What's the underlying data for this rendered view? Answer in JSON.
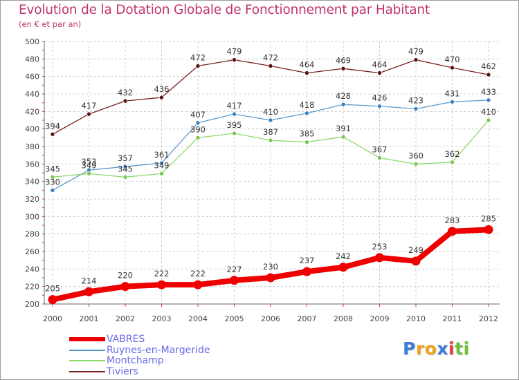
{
  "title": "Evolution de la Dotation Globale de Fonctionnement par Habitant",
  "subtitle": "(en € et par an)",
  "logo": {
    "text": "Proxiti",
    "letters": [
      "P",
      "r",
      "o",
      "x",
      "i",
      "t",
      "i"
    ],
    "colors": [
      "#3b7dd8",
      "#f0a21a",
      "#f0a21a",
      "#3b7dd8",
      "#e03c3c",
      "#6fbf3a",
      "#6fbf3a"
    ]
  },
  "colors": {
    "title": "#c0346e",
    "axis": "#444444",
    "grid": "#cccccc",
    "ticks_red": "#e0324a",
    "legend_text": "#6a6ae8"
  },
  "chart_data": {
    "type": "line",
    "title": "Evolution de la Dotation Globale de Fonctionnement par Habitant",
    "subtitle": "(en € et par an)",
    "xlabel": "",
    "ylabel": "",
    "x": [
      "2000",
      "2001",
      "2002",
      "2003",
      "2004",
      "2005",
      "2006",
      "2007",
      "2008",
      "2009",
      "2010",
      "2011",
      "2012"
    ],
    "ylim": [
      200,
      500
    ],
    "yticks": [
      200,
      220,
      240,
      260,
      280,
      300,
      320,
      340,
      360,
      380,
      400,
      420,
      440,
      460,
      480,
      500
    ],
    "grid": true,
    "legend_position": "bottom-left",
    "series": [
      {
        "name": "Tiviers",
        "color": "#7a1e1e",
        "marker": "#5a1010",
        "width": "thin",
        "values": [
          394,
          417,
          432,
          436,
          472,
          479,
          472,
          464,
          469,
          464,
          479,
          470,
          462
        ],
        "labels": [
          "394",
          "417",
          "432",
          "436",
          "472",
          "479",
          "472",
          "464",
          "469",
          "464",
          "479",
          "470",
          "462"
        ]
      },
      {
        "name": "Ruynes-en-Margeride",
        "color": "#5a9bd0",
        "marker": "#3c82c0",
        "width": "thin",
        "values": [
          330,
          353,
          357,
          361,
          407,
          417,
          410,
          418,
          428,
          426,
          423,
          431,
          433
        ],
        "labels": [
          "330",
          "353",
          "357",
          "361",
          "407",
          "417",
          "410",
          "418",
          "428",
          "426",
          "423",
          "431",
          "433"
        ]
      },
      {
        "name": "Montchamp",
        "color": "#8ed86a",
        "marker": "#7ac850",
        "width": "thin",
        "values": [
          345,
          349,
          345,
          349,
          390,
          395,
          387,
          385,
          391,
          367,
          360,
          362,
          410
        ],
        "labels": [
          "345",
          "349",
          "345",
          "349",
          "390",
          "395",
          "387",
          "385",
          "391",
          "367",
          "360",
          "362",
          "410"
        ]
      },
      {
        "name": "VABRES",
        "color": "#ee0000",
        "marker": "#ee0000",
        "width": "thick",
        "values": [
          205,
          214,
          220,
          222,
          222,
          227,
          230,
          237,
          242,
          253,
          249,
          283,
          285
        ],
        "labels": [
          "205",
          "214",
          "220",
          "222",
          "222",
          "227",
          "230",
          "237",
          "242",
          "253",
          "249",
          "283",
          "285"
        ]
      }
    ],
    "legend": [
      "VABRES",
      "Ruynes-en-Margeride",
      "Montchamp",
      "Tiviers"
    ]
  }
}
